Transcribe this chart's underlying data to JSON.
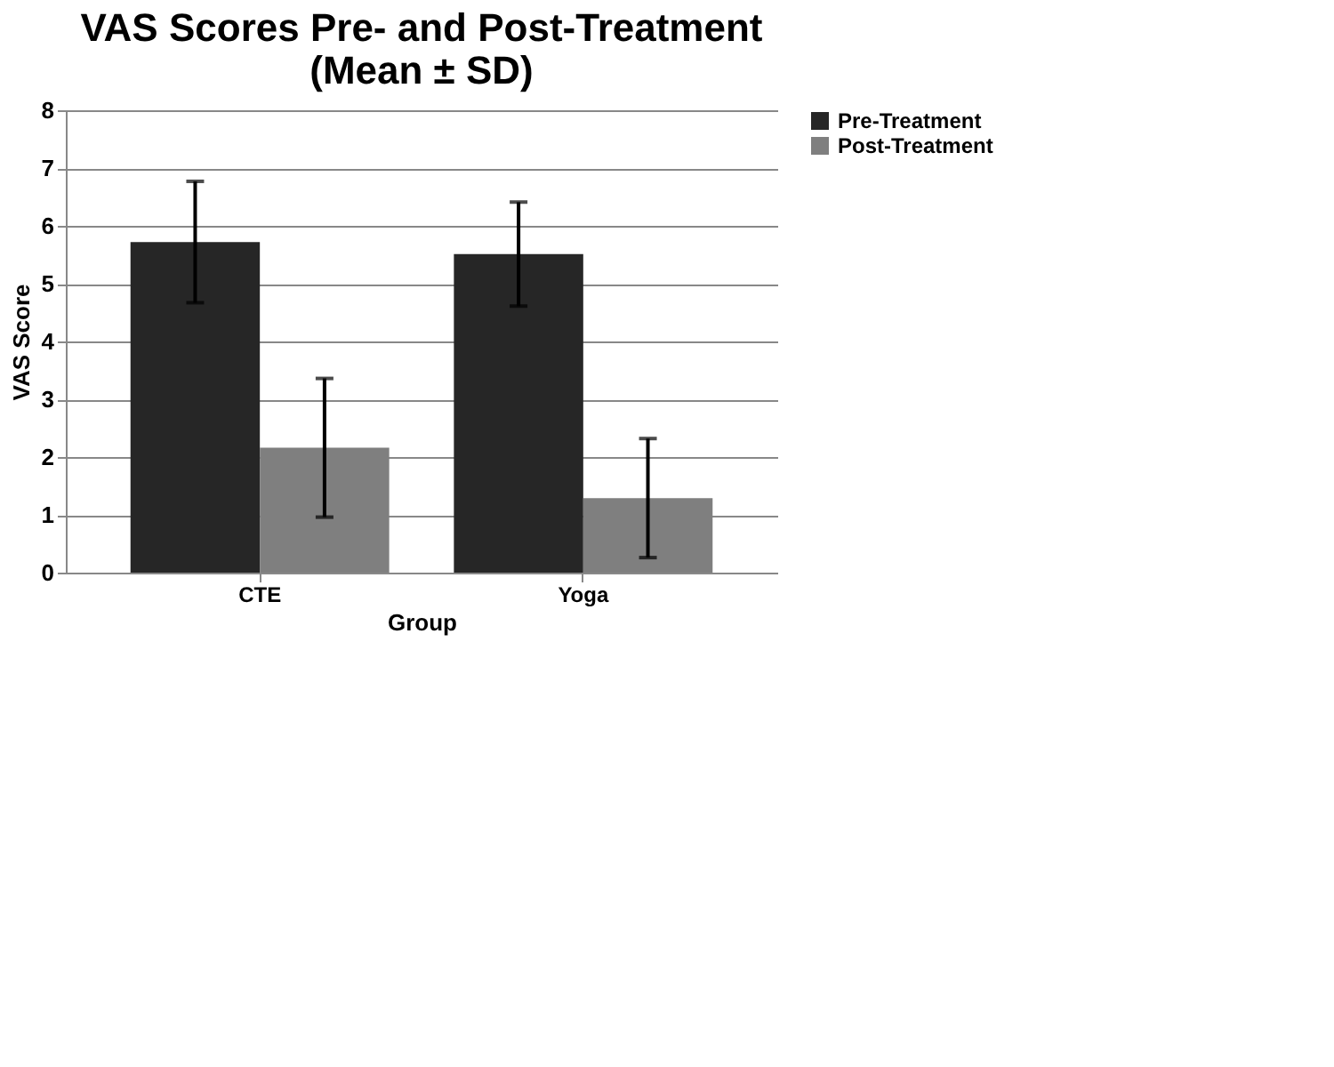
{
  "chart_data": {
    "type": "bar",
    "title": [
      "VAS Scores Pre- and Post-Treatment",
      "(Mean ± SD)"
    ],
    "xlabel": "Group",
    "ylabel": "VAS Score",
    "categories": [
      "CTE",
      "Yoga"
    ],
    "series": [
      {
        "name": "Pre-Treatment",
        "color": "#262626",
        "values": [
          5.72,
          5.51
        ],
        "errors": [
          1.05,
          0.9
        ]
      },
      {
        "name": "Post-Treatment",
        "color": "#7f7f7f",
        "values": [
          2.16,
          1.29
        ],
        "errors": [
          1.2,
          1.03
        ]
      }
    ],
    "ylim": [
      0,
      8
    ],
    "yticks": [
      0,
      1,
      2,
      3,
      4,
      5,
      6,
      7,
      8
    ],
    "grid": "y",
    "legend": "right"
  }
}
